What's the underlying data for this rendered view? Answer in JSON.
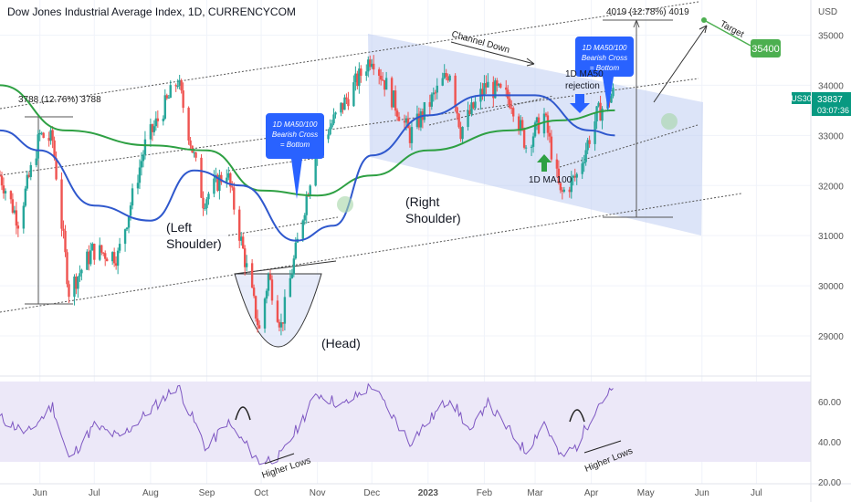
{
  "header": {
    "title": "Dow Jones Industrial Average Index, 1D, CURRENCYCOM"
  },
  "colors": {
    "up": "#26a69a",
    "down": "#ef5350",
    "ma50": "#2f58cd",
    "ma100": "#2ea043",
    "channel": "#b9c9f2",
    "rsi_line": "#7e57c2",
    "rsi_band": "#ece8f8",
    "callout": "#2962ff",
    "target": "#4caf50",
    "price_tag": "#089981"
  },
  "price_axis": {
    "currency": "USD",
    "ticks": [
      "35000",
      "34000",
      "33000",
      "32000",
      "31000",
      "30000",
      "29000"
    ],
    "current_symbol": "US30",
    "current_price": "33837",
    "countdown": "03:07:36",
    "target_label": "35400"
  },
  "rsi_axis": {
    "ticks": [
      "60.00",
      "40.00",
      "20.00"
    ]
  },
  "time_axis": {
    "labels": [
      "Jun",
      "Jul",
      "Aug",
      "Sep",
      "Oct",
      "Nov",
      "Dec",
      "2023",
      "Feb",
      "Mar",
      "Apr",
      "May",
      "Jun",
      "Jul"
    ]
  },
  "annotations": {
    "left_shoulder": [
      "(Left",
      "Shoulder)"
    ],
    "head": "(Head)",
    "right_shoulder": [
      "(Right",
      "Shoulder)"
    ],
    "channel_down": "Channel Down",
    "measure_left": "3788 (12.76%) 3788",
    "measure_right": "4019 (12.78%) 4019",
    "target": "Target",
    "callout_left": [
      "1D MA50/100",
      "Bearish Cross",
      "= Bottom"
    ],
    "callout_right": [
      "1D MA50/100",
      "Bearish Cross",
      "= Bottom"
    ],
    "ma50_rejection": [
      "1D MA50",
      "rejection"
    ],
    "ma100": "1D MA100",
    "higher_lows_left": "Higher Lows",
    "higher_lows_right": "Higher Lows"
  },
  "chart_data": {
    "type": "candlestick",
    "title": "Dow Jones Industrial Average Index, 1D, CURRENCYCOM",
    "x_range": [
      "2022-05-10",
      "2023-07-31"
    ],
    "y_range": [
      28200,
      35700
    ],
    "y_ticks": [
      29000,
      30000,
      31000,
      32000,
      33000,
      34000,
      35000
    ],
    "close_path": [
      [
        "2022-05-10",
        32200
      ],
      [
        "2022-05-20",
        31300
      ],
      [
        "2022-06-01",
        33000
      ],
      [
        "2022-06-08",
        32900
      ],
      [
        "2022-06-17",
        29900
      ],
      [
        "2022-06-30",
        30700
      ],
      [
        "2022-07-14",
        30600
      ],
      [
        "2022-07-29",
        32800
      ],
      [
        "2022-08-16",
        34100
      ],
      [
        "2022-08-30",
        31700
      ],
      [
        "2022-09-12",
        32300
      ],
      [
        "2022-09-30",
        29100
      ],
      [
        "2022-10-05",
        30200
      ],
      [
        "2022-10-12",
        29200
      ],
      [
        "2022-10-31",
        32700
      ],
      [
        "2022-11-15",
        33600
      ],
      [
        "2022-12-01",
        34600
      ],
      [
        "2022-12-22",
        33000
      ],
      [
        "2023-01-13",
        34300
      ],
      [
        "2023-01-19",
        33100
      ],
      [
        "2023-02-02",
        34000
      ],
      [
        "2023-02-16",
        33700
      ],
      [
        "2023-02-24",
        32800
      ],
      [
        "2023-03-06",
        33400
      ],
      [
        "2023-03-15",
        31800
      ],
      [
        "2023-03-24",
        32200
      ],
      [
        "2023-04-04",
        33400
      ],
      [
        "2023-04-13",
        33837
      ]
    ],
    "series": [
      {
        "name": "1D MA50",
        "values": [
          [
            "2022-05-10",
            33100
          ],
          [
            "2022-06-01",
            32700
          ],
          [
            "2022-07-01",
            31600
          ],
          [
            "2022-08-01",
            31300
          ],
          [
            "2022-08-25",
            32300
          ],
          [
            "2022-09-20",
            32000
          ],
          [
            "2022-10-20",
            30900
          ],
          [
            "2022-11-10",
            31200
          ],
          [
            "2022-12-01",
            32600
          ],
          [
            "2023-01-01",
            33400
          ],
          [
            "2023-02-01",
            33800
          ],
          [
            "2023-03-01",
            33800
          ],
          [
            "2023-03-31",
            33100
          ],
          [
            "2023-04-14",
            33000
          ]
        ]
      },
      {
        "name": "1D MA100",
        "values": [
          [
            "2022-05-10",
            34000
          ],
          [
            "2022-06-15",
            33100
          ],
          [
            "2022-08-01",
            32800
          ],
          [
            "2022-09-01",
            32700
          ],
          [
            "2022-10-01",
            31900
          ],
          [
            "2022-11-01",
            31800
          ],
          [
            "2022-12-01",
            32200
          ],
          [
            "2023-01-01",
            32700
          ],
          [
            "2023-02-15",
            33100
          ],
          [
            "2023-03-15",
            33300
          ],
          [
            "2023-04-14",
            33500
          ]
        ]
      }
    ],
    "rsi": {
      "y_range": [
        20,
        70
      ],
      "band": [
        30,
        70
      ],
      "ticks": [
        60,
        40,
        20
      ],
      "values": [
        [
          "2022-05-10",
          52
        ],
        [
          "2022-05-25",
          44
        ],
        [
          "2022-06-08",
          58
        ],
        [
          "2022-06-17",
          31
        ],
        [
          "2022-07-01",
          48
        ],
        [
          "2022-07-15",
          42
        ],
        [
          "2022-08-16",
          68
        ],
        [
          "2022-09-01",
          36
        ],
        [
          "2022-09-12",
          50
        ],
        [
          "2022-09-30",
          30
        ],
        [
          "2022-10-12",
          33
        ],
        [
          "2022-11-01",
          64
        ],
        [
          "2022-11-15",
          58
        ],
        [
          "2022-12-01",
          68
        ],
        [
          "2022-12-22",
          40
        ],
        [
          "2023-01-13",
          62
        ],
        [
          "2023-01-25",
          44
        ],
        [
          "2023-02-02",
          60
        ],
        [
          "2023-02-24",
          35
        ],
        [
          "2023-03-06",
          50
        ],
        [
          "2023-03-15",
          32
        ],
        [
          "2023-03-24",
          38
        ],
        [
          "2023-04-04",
          58
        ],
        [
          "2023-04-13",
          66
        ]
      ]
    }
  }
}
